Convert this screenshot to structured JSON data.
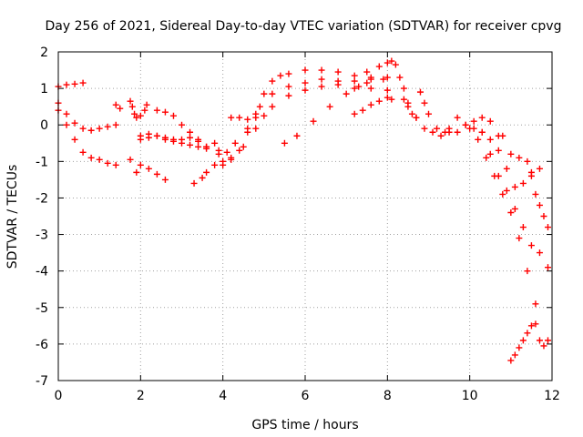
{
  "chart_data": {
    "type": "scatter",
    "title": "Day 256 of 2021, Sidereal Day-to-day VTEC variation (SDTVAR) for receiver cpvg",
    "xlabel": "GPS time / hours",
    "ylabel": "SDTVAR / TECUs",
    "xlim": [
      0,
      12
    ],
    "ylim": [
      -7,
      2
    ],
    "xticks": [
      0,
      2,
      4,
      6,
      8,
      10,
      12
    ],
    "yticks": [
      -7,
      -6,
      -5,
      -4,
      -3,
      -2,
      -1,
      0,
      1,
      2
    ],
    "grid": true,
    "marker": "+",
    "color": "#ff0000",
    "series": [
      {
        "name": "s1",
        "x": [
          0.0,
          0.2,
          0.4,
          0.6
        ],
        "y": [
          1.05,
          1.1,
          1.12,
          1.15
        ]
      },
      {
        "name": "s2",
        "x": [
          0.0,
          0.2,
          0.4,
          0.6,
          0.8,
          1.0,
          1.2,
          1.4
        ],
        "y": [
          0.6,
          0.3,
          0.05,
          -0.1,
          -0.15,
          -0.1,
          -0.05,
          0.0
        ]
      },
      {
        "name": "s3",
        "x": [
          0.0,
          0.2,
          0.4,
          0.6,
          0.8,
          1.0,
          1.2,
          1.4
        ],
        "y": [
          0.4,
          0.0,
          -0.4,
          -0.75,
          -0.9,
          -0.95,
          -1.05,
          -1.1
        ]
      },
      {
        "name": "s4",
        "x": [
          1.4,
          1.5
        ],
        "y": [
          0.55,
          0.45
        ]
      },
      {
        "name": "s5",
        "x": [
          1.75,
          1.8,
          1.85,
          1.9,
          2.0,
          2.1,
          2.15
        ],
        "y": [
          0.65,
          0.5,
          0.3,
          0.2,
          0.25,
          0.4,
          0.55
        ]
      },
      {
        "name": "s6",
        "x": [
          2.0,
          2.2,
          2.4,
          2.6,
          2.8,
          3.0,
          3.2,
          3.4,
          3.6
        ],
        "y": [
          -0.4,
          -0.35,
          -0.3,
          -0.35,
          -0.4,
          -0.5,
          -0.55,
          -0.6,
          -0.65
        ]
      },
      {
        "name": "s7",
        "x": [
          2.0,
          2.2,
          2.4,
          2.6,
          2.8,
          3.0,
          3.2,
          3.4,
          3.6
        ],
        "y": [
          -0.3,
          -0.25,
          -0.3,
          -0.4,
          -0.45,
          -0.4,
          -0.35,
          -0.45,
          -0.6
        ]
      },
      {
        "name": "s8",
        "x": [
          2.4,
          2.6,
          2.8,
          3.0,
          3.2,
          3.4,
          3.6
        ],
        "y": [
          0.4,
          0.35,
          0.25,
          0.0,
          -0.2,
          -0.4,
          -0.6
        ]
      },
      {
        "name": "s9",
        "x": [
          1.75,
          1.9,
          2.0,
          2.2,
          2.4,
          2.6
        ],
        "y": [
          -0.95,
          -1.3,
          -1.1,
          -1.2,
          -1.35,
          -1.5
        ]
      },
      {
        "name": "s10",
        "x": [
          3.3,
          3.5,
          3.6,
          3.8
        ],
        "y": [
          -1.6,
          -1.45,
          -1.3,
          -1.1
        ]
      },
      {
        "name": "s11",
        "x": [
          3.8,
          3.9,
          4.0,
          4.2,
          4.4,
          4.6,
          4.8,
          5.0,
          5.2,
          5.4,
          5.6,
          6.0,
          6.4,
          6.8,
          7.2,
          7.6,
          7.9
        ],
        "y": [
          -0.5,
          -0.8,
          -1.0,
          -0.95,
          -0.7,
          -0.2,
          0.3,
          0.85,
          1.2,
          1.35,
          1.4,
          1.5,
          1.5,
          1.45,
          1.35,
          1.3,
          1.25
        ]
      },
      {
        "name": "s12",
        "x": [
          3.9,
          4.1,
          4.3,
          4.6,
          4.9,
          5.2,
          5.6,
          6.0,
          6.4,
          6.8,
          7.2,
          7.6,
          8.0
        ],
        "y": [
          -0.7,
          -0.75,
          -0.5,
          -0.1,
          0.5,
          0.85,
          1.05,
          1.15,
          1.25,
          1.2,
          1.2,
          1.25,
          1.3
        ]
      },
      {
        "name": "s13",
        "x": [
          4.0,
          4.2,
          4.5,
          4.8,
          5.2,
          5.6,
          6.0,
          6.4,
          6.8,
          7.2,
          7.6,
          8.0
        ],
        "y": [
          -1.1,
          -0.9,
          -0.6,
          -0.1,
          0.5,
          0.8,
          0.95,
          1.05,
          1.1,
          1.0,
          1.0,
          0.95
        ]
      },
      {
        "name": "s14",
        "x": [
          4.2,
          4.4,
          4.6,
          4.8,
          5.0
        ],
        "y": [
          0.2,
          0.2,
          0.15,
          0.2,
          0.25
        ]
      },
      {
        "name": "s15",
        "x": [
          5.5,
          5.8,
          6.2,
          6.6,
          7.0,
          7.3,
          7.5
        ],
        "y": [
          -0.5,
          -0.3,
          0.1,
          0.5,
          0.85,
          1.05,
          1.15
        ]
      },
      {
        "name": "s16",
        "x": [
          7.2,
          7.4,
          7.6,
          7.8,
          8.0,
          8.1
        ],
        "y": [
          0.3,
          0.4,
          0.55,
          0.65,
          0.75,
          0.7
        ]
      },
      {
        "name": "s17",
        "x": [
          7.5,
          7.8,
          8.0,
          8.1,
          8.2
        ],
        "y": [
          1.45,
          1.6,
          1.7,
          1.75,
          1.65
        ]
      },
      {
        "name": "s18",
        "x": [
          8.3,
          8.4,
          8.5,
          8.6,
          8.7,
          8.8,
          8.9,
          9.0,
          9.2,
          9.4
        ],
        "y": [
          1.3,
          1.0,
          0.6,
          0.3,
          0.2,
          0.9,
          0.6,
          0.3,
          -0.1,
          -0.2
        ]
      },
      {
        "name": "s19",
        "x": [
          8.4,
          8.5,
          8.7,
          8.9,
          9.1,
          9.3,
          9.5,
          9.7,
          9.9,
          10.1,
          10.3,
          10.5,
          10.7
        ],
        "y": [
          0.7,
          0.5,
          0.2,
          -0.1,
          -0.2,
          -0.3,
          -0.2,
          0.2,
          0.0,
          -0.1,
          0.2,
          0.1,
          -0.3
        ]
      },
      {
        "name": "s20",
        "x": [
          9.5,
          9.7,
          9.9,
          10.1,
          10.3,
          10.5,
          10.7,
          10.9,
          11.1,
          11.3,
          11.5,
          11.7,
          11.9
        ],
        "y": [
          -0.1,
          -0.2,
          0.0,
          0.1,
          -0.2,
          -0.8,
          -1.4,
          -1.8,
          -2.3,
          -2.8,
          -3.3,
          -3.5,
          -3.9
        ]
      },
      {
        "name": "s21",
        "x": [
          10.0,
          10.2,
          10.4,
          10.6,
          10.8,
          11.0,
          11.2,
          11.4,
          11.6
        ],
        "y": [
          -0.1,
          -0.4,
          -0.9,
          -1.4,
          -1.9,
          -2.4,
          -3.1,
          -4.0,
          -4.9
        ]
      },
      {
        "name": "s22",
        "x": [
          10.3,
          10.5,
          10.7,
          10.9,
          11.1,
          11.3,
          11.5,
          11.7
        ],
        "y": [
          -0.2,
          -0.4,
          -0.7,
          -1.2,
          -1.7,
          -1.6,
          -1.3,
          -1.2
        ]
      },
      {
        "name": "s23",
        "x": [
          10.8,
          11.0,
          11.2,
          11.4,
          11.5,
          11.6,
          11.7,
          11.8,
          11.9
        ],
        "y": [
          -0.3,
          -0.8,
          -0.9,
          -1.0,
          -1.4,
          -1.9,
          -2.2,
          -2.5,
          -2.8
        ]
      },
      {
        "name": "s24",
        "x": [
          11.0,
          11.1,
          11.2,
          11.3,
          11.4,
          11.5,
          11.6,
          11.7,
          11.8,
          11.9
        ],
        "y": [
          -6.45,
          -6.3,
          -6.1,
          -5.9,
          -5.7,
          -5.5,
          -5.45,
          -5.9,
          -6.05,
          -5.9
        ]
      }
    ]
  }
}
